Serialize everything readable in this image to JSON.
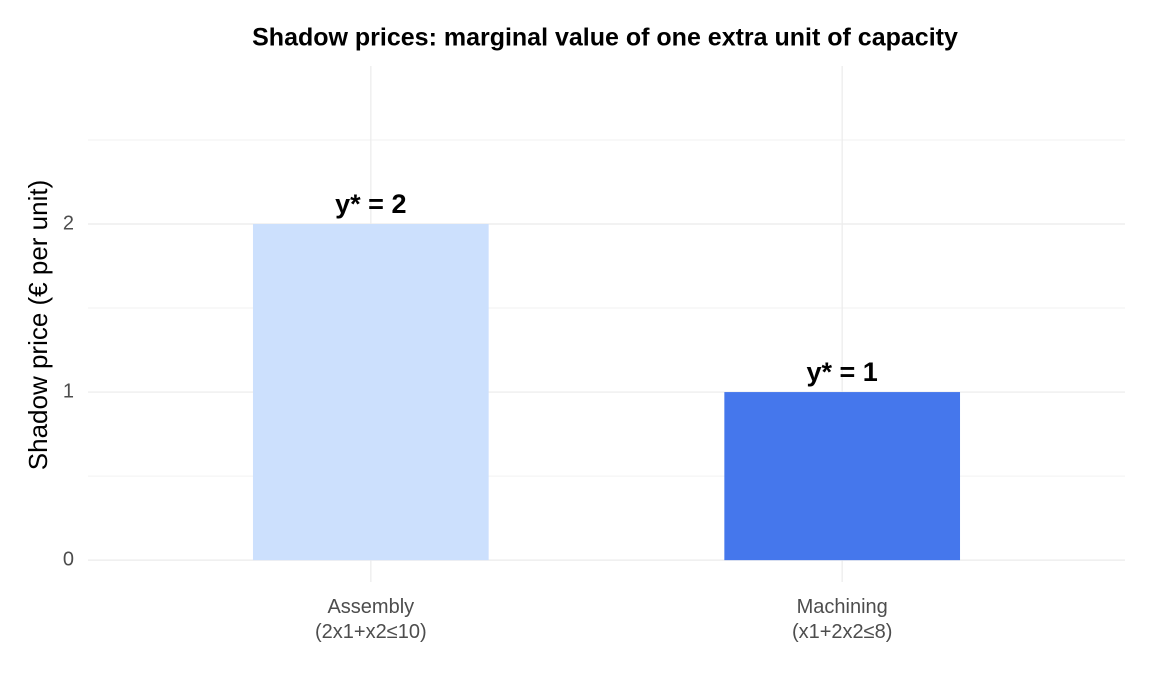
{
  "chart_data": {
    "type": "bar",
    "title": "Shadow prices: marginal value of one extra unit of capacity",
    "y_label": "Shadow price (€ per unit)",
    "categories": [
      "Assembly\n(2x1+x2≤10)",
      "Machining\n(x1+2x2≤8)"
    ],
    "values": [
      2,
      1
    ],
    "value_labels": [
      "y* = 2",
      "y* = 1"
    ],
    "colors": [
      "#cce0fd",
      "#4577ec"
    ],
    "ylim": [
      -0.13,
      2.94
    ],
    "yticks": [
      0,
      1,
      2
    ],
    "yminorticks": [
      0.5,
      1.5,
      2.5
    ],
    "grid": true
  }
}
